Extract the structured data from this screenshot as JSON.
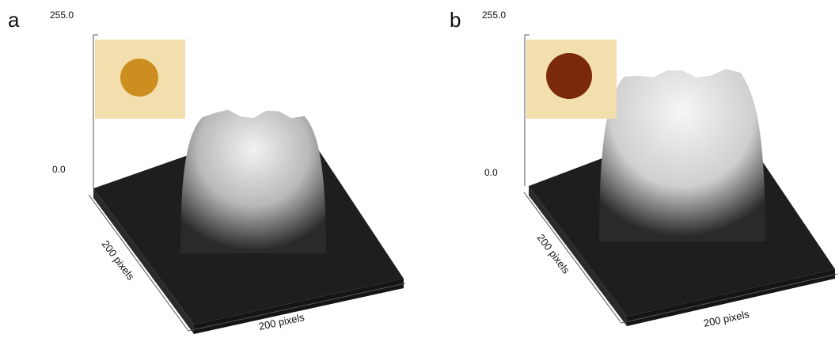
{
  "panels": [
    {
      "letter": "a",
      "z_max": "255.0",
      "z_min": "0.0",
      "x_dim": "200 pixels",
      "y_dim": "200 pixels",
      "peak_height": 0.58,
      "inset_dot_color": "#c8860f",
      "inset_bg_color": "#f3dfae"
    },
    {
      "letter": "b",
      "z_max": "255.0",
      "z_min": "0.0",
      "x_dim": "200 pixels",
      "y_dim": "200 pixels",
      "peak_height": 0.92,
      "inset_dot_color": "#7a2a08",
      "inset_bg_color": "#f3dfae"
    }
  ],
  "colors": {
    "surface_base": "#202020",
    "surface_peak": "#f4f4f4",
    "axis_line": "#555555"
  }
}
